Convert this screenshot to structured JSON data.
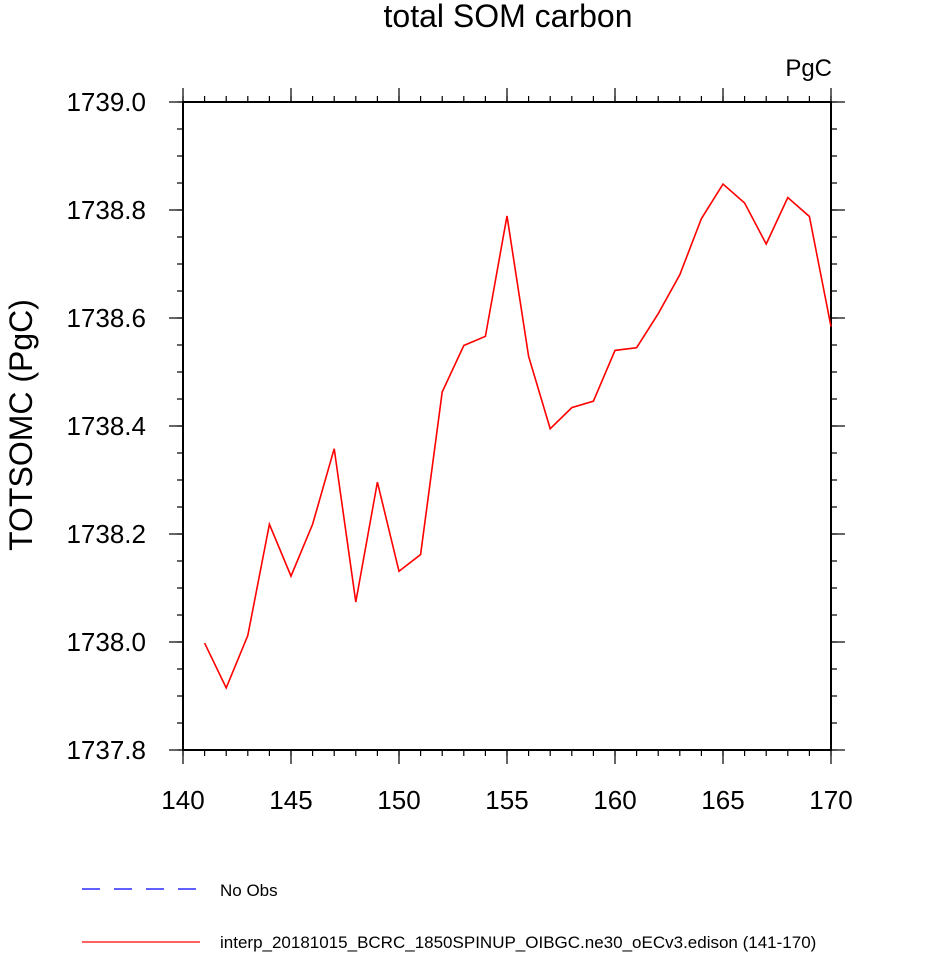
{
  "chart_data": {
    "type": "line",
    "title": "total SOM carbon",
    "units_label": "PgC",
    "xlabel": "",
    "ylabel": "TOTSOMC  (PgC)",
    "xlim": [
      140,
      170
    ],
    "ylim": [
      1737.8,
      1739.0
    ],
    "xticks": [
      140,
      145,
      150,
      155,
      160,
      165,
      170
    ],
    "xtick_labels": [
      "140",
      "145",
      "150",
      "155",
      "160",
      "165",
      "170"
    ],
    "yticks": [
      1737.8,
      1738.0,
      1738.2,
      1738.4,
      1738.6,
      1738.8,
      1739.0
    ],
    "ytick_labels": [
      "1737.8",
      "1738.0",
      "1738.2",
      "1738.4",
      "1738.6",
      "1738.8",
      "1739.0"
    ],
    "x_minor_step": 1,
    "y_minor_step": 0.05,
    "grid": false,
    "series": [
      {
        "name": "interp_20181015_BCRC_1850SPINUP_OIBGC.ne30_oECv3.edison (141-170)",
        "color": "#ff0000",
        "dash": "solid",
        "x": [
          141,
          142,
          143,
          144,
          145,
          146,
          147,
          148,
          149,
          150,
          151,
          152,
          153,
          154,
          155,
          156,
          157,
          158,
          159,
          160,
          161,
          162,
          163,
          164,
          165,
          166,
          167,
          168,
          169,
          170
        ],
        "values": [
          1737.998,
          1737.915,
          1738.012,
          1738.218,
          1738.122,
          1738.218,
          1738.358,
          1738.074,
          1738.296,
          1738.131,
          1738.162,
          1738.463,
          1738.549,
          1738.566,
          1738.789,
          1738.529,
          1738.395,
          1738.434,
          1738.446,
          1738.54,
          1738.545,
          1738.608,
          1738.68,
          1738.784,
          1738.848,
          1738.813,
          1738.737,
          1738.823,
          1738.788,
          1738.584
        ]
      }
    ],
    "legend": {
      "position": "bottom-left",
      "entries": [
        {
          "label": "No Obs",
          "color": "#0000ff",
          "dash": "dashed"
        },
        {
          "label": "interp_20181015_BCRC_1850SPINUP_OIBGC.ne30_oECv3.edison (141-170)",
          "color": "#ff0000",
          "dash": "solid"
        }
      ]
    }
  }
}
